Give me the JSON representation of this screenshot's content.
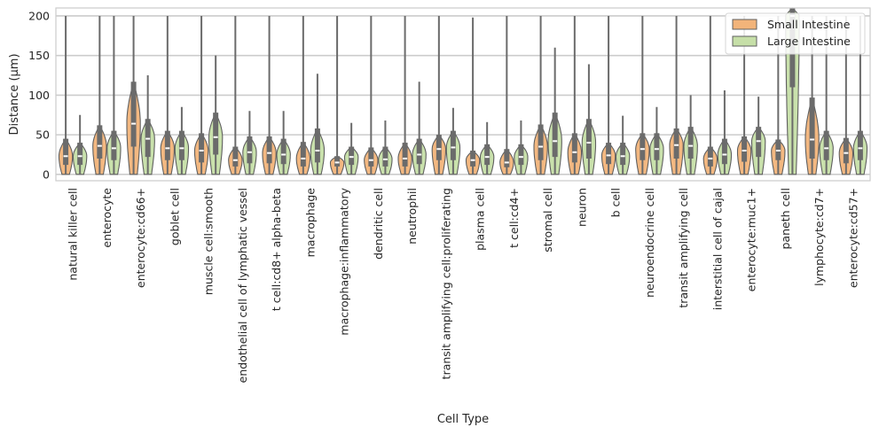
{
  "chart_data": {
    "type": "violin",
    "xlabel": "Cell Type",
    "ylabel": "Distance (µm)",
    "ylim": [
      -8,
      210
    ],
    "yticks": [
      0,
      50,
      100,
      150,
      200
    ],
    "grid": true,
    "legend_position": "top-right",
    "categories": [
      "natural killer cell",
      "enterocyte",
      "enterocyte:cd66+",
      "goblet cell",
      "muscle cell:smooth",
      "endothelial cell of lymphatic vessel",
      "t cell:cd8+ alpha-beta",
      "macrophage",
      "macrophage:inflammatory",
      "dendritic cell",
      "neutrophil",
      "transit amplifying cell:proliferating",
      "plasma cell",
      "t cell:cd4+",
      "stromal cell",
      "neuron",
      "b cell",
      "neuroendocrine cell",
      "transit amplifying cell",
      "interstitial cell of cajal",
      "enterocyte:muc1+",
      "paneth cell",
      "lymphocyte:cd7+",
      "enterocyte:cd57+"
    ],
    "series": [
      {
        "name": "Small Intestine",
        "color": "#f2b47a",
        "median": [
          23,
          36,
          64,
          33,
          30,
          18,
          27,
          20,
          15,
          18,
          20,
          32,
          18,
          15,
          35,
          28,
          24,
          32,
          37,
          20,
          30,
          30,
          44,
          27
        ],
        "q1": [
          12,
          20,
          35,
          18,
          15,
          10,
          14,
          10,
          10,
          10,
          10,
          18,
          10,
          9,
          18,
          15,
          13,
          18,
          20,
          10,
          16,
          18,
          20,
          14
        ],
        "q3": [
          45,
          62,
          117,
          55,
          52,
          35,
          48,
          41,
          23,
          34,
          40,
          50,
          30,
          32,
          63,
          52,
          40,
          52,
          58,
          35,
          48,
          44,
          97,
          46
        ],
        "max": [
          200,
          200,
          200,
          200,
          200,
          200,
          200,
          200,
          200,
          200,
          200,
          200,
          198,
          200,
          200,
          200,
          200,
          200,
          200,
          200,
          200,
          200,
          200,
          200
        ]
      },
      {
        "name": "Large Intestine",
        "color": "#c6dfa8",
        "median": [
          23,
          33,
          45,
          33,
          47,
          28,
          25,
          30,
          22,
          19,
          25,
          34,
          22,
          22,
          42,
          40,
          23,
          32,
          36,
          25,
          42,
          200,
          33,
          33
        ],
        "q1": [
          12,
          18,
          22,
          18,
          25,
          14,
          13,
          15,
          12,
          10,
          13,
          18,
          12,
          12,
          22,
          20,
          12,
          18,
          20,
          13,
          22,
          110,
          18,
          18
        ],
        "q3": [
          40,
          55,
          70,
          55,
          78,
          48,
          45,
          58,
          35,
          35,
          45,
          55,
          38,
          38,
          78,
          70,
          40,
          52,
          60,
          45,
          60,
          210,
          55,
          55
        ],
        "max": [
          75,
          200,
          125,
          85,
          150,
          80,
          80,
          127,
          65,
          68,
          117,
          84,
          66,
          68,
          160,
          139,
          74,
          85,
          100,
          106,
          98,
          200,
          200,
          200
        ]
      }
    ]
  }
}
